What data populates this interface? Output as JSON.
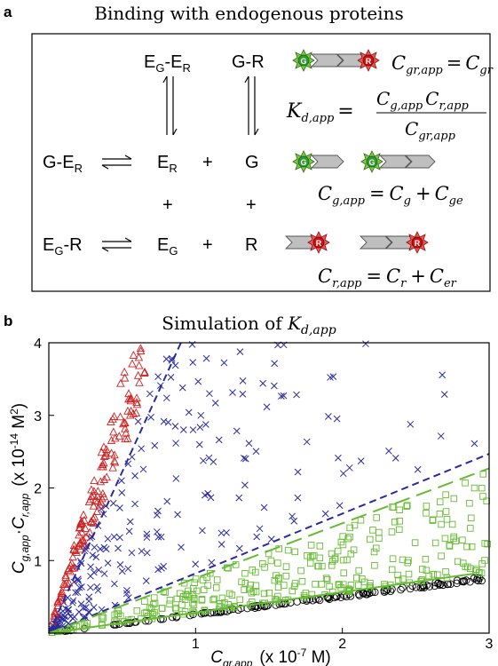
{
  "panel_a": {
    "letter": "a",
    "title": "Binding with endogenous proteins",
    "species": {
      "eg_er": {
        "E1": "E",
        "s1": "G",
        "mid": "-E",
        "s2": "R"
      },
      "g_r": "G-R",
      "g_er": {
        "pre": "G-E",
        "sub": "R"
      },
      "er": {
        "main": "E",
        "sub": "R"
      },
      "g": "G",
      "eg_r": {
        "main": "E",
        "sub": "G",
        "post": "-R"
      },
      "eg": {
        "main": "E",
        "sub": "G"
      },
      "r": "R",
      "plus": "+"
    },
    "badges": {
      "green": "G",
      "red": "R"
    },
    "equations": {
      "cgr": {
        "lhs": "C",
        "lhs_sub": "gr,app",
        "eq": "=",
        "rhs": "C",
        "rhs_sub": "gr"
      },
      "kd": {
        "lhs": "K",
        "lhs_sub": "d,app",
        "eq": "=",
        "num1": "C",
        "num1_sub": "g,app",
        "num2": "C",
        "num2_sub": "r,app",
        "den": "C",
        "den_sub": "gr,app"
      },
      "cg": {
        "lhs": "C",
        "lhs_sub": "g,app",
        "eq": "=",
        "t1": "C",
        "t1_sub": "g",
        "plus": "+",
        "t2": "C",
        "t2_sub": "ge"
      },
      "cr": {
        "lhs": "C",
        "lhs_sub": "r,app",
        "eq": "=",
        "t1": "C",
        "t1_sub": "r",
        "plus": "+",
        "t2": "C",
        "t2_sub": "er"
      }
    }
  },
  "panel_b": {
    "letter": "b",
    "title": {
      "prefix": "Simulation of ",
      "K": "K",
      "sub": "d,app"
    },
    "ylabel": {
      "c1": "C",
      "c1_sub": "g,app",
      "dot": "·",
      "c2": "C",
      "c2_sub": "r,app",
      "unit": "(x 10",
      "exp": "-14",
      "unit2": " M",
      "exp2": "2",
      "close": ")"
    },
    "xlabel": {
      "c": "C",
      "c_sub": "gr,app",
      "unit": "(x 10",
      "exp": "-7",
      "unit2": " M)"
    }
  },
  "chart_data": {
    "type": "scatter",
    "xlim": [
      0,
      3
    ],
    "ylim": [
      0,
      4
    ],
    "x_ticks": [
      "1",
      "2",
      "3"
    ],
    "y_ticks": [
      "1",
      "2",
      "3",
      "4"
    ],
    "grid": false,
    "colors": {
      "red": "#cc2222",
      "blue": "#2a2a9e",
      "green": "#66bb33",
      "black": "#000000"
    },
    "series": [
      {
        "marker": "triangle",
        "color": "#cc2222",
        "slope": 6.0,
        "count": 140,
        "xmax": 0.66,
        "spread": 0.35
      },
      {
        "marker": "cross",
        "color": "#2a2a9e",
        "slope_min": 0.85,
        "slope_max": 4.8,
        "count": 330,
        "xmax": 3.0
      },
      {
        "marker": "square",
        "color": "#66bb33",
        "slope_min": 0.28,
        "slope_max": 0.75,
        "count": 300,
        "xmax": 3.0
      },
      {
        "marker": "circle",
        "color": "#000000",
        "slope": 0.255,
        "count": 140,
        "xmax": 2.95
      }
    ],
    "lines": [
      {
        "style": "dashed",
        "color": "#2a2a9e",
        "x": [
          0,
          0.9
        ],
        "y": [
          0,
          4.0
        ]
      },
      {
        "style": "dashed",
        "color": "#2a2a9e",
        "x": [
          0,
          3.0
        ],
        "y": [
          0,
          2.47
        ]
      },
      {
        "style": "long-dashed",
        "color": "#66bb33",
        "x": [
          0,
          3.0
        ],
        "y": [
          0,
          2.27
        ]
      },
      {
        "style": "solid",
        "color": "#66bb33",
        "x": [
          0,
          2.9
        ],
        "y": [
          0,
          0.82
        ]
      }
    ]
  }
}
